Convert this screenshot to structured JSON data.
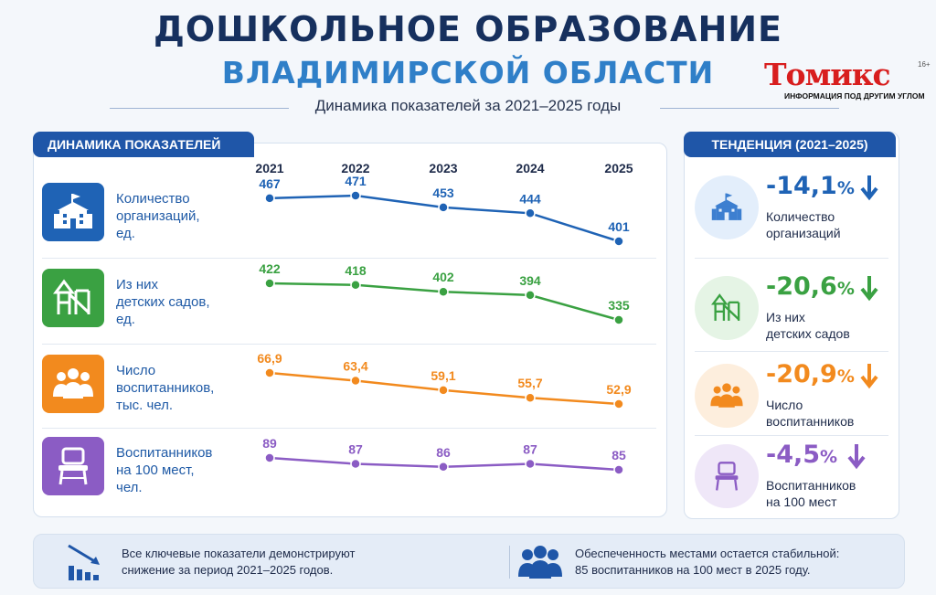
{
  "header": {
    "title_line1": "ДОШКОЛЬНОЕ ОБРАЗОВАНИЕ",
    "title_line2": "ВЛАДИМИРСКОЙ ОБЛАСТИ",
    "subtitle": "Динамика показателей за 2021–2025 годы"
  },
  "logo": {
    "name": "Томикс",
    "age": "16+",
    "tagline": "ИНФОРМАЦИЯ ПОД ДРУГИМ УГЛОМ",
    "color": "#d81e1e"
  },
  "left_panel": {
    "heading": "ДИНАМИКА ПОКАЗАТЕЛЕЙ",
    "rows": [
      {
        "label": "Количество\nорганизаций,\nед.",
        "icon": "school-building-icon",
        "color": "#1f63b5"
      },
      {
        "label": "Из них\nдетских садов,\nед.",
        "icon": "playground-icon",
        "color": "#3aa142"
      },
      {
        "label": "Число\nвоспитанников,\nтыс. чел.",
        "icon": "children-group-icon",
        "color": "#f28a1e"
      },
      {
        "label": "Воспитанников\nна 100 мест,\nчел.",
        "icon": "chair-icon",
        "color": "#8b5cc4"
      }
    ]
  },
  "chart_data": {
    "type": "line",
    "categories": [
      "2021",
      "2022",
      "2023",
      "2024",
      "2025"
    ],
    "series": [
      {
        "values": [
          467,
          471,
          453,
          444,
          401
        ],
        "labels": [
          "467",
          "471",
          "453",
          "444",
          "401"
        ],
        "color": "#1f63b5"
      },
      {
        "values": [
          422,
          418,
          402,
          394,
          335
        ],
        "labels": [
          "422",
          "418",
          "402",
          "394",
          "335"
        ],
        "color": "#3aa142"
      },
      {
        "values": [
          66.9,
          63.4,
          59.1,
          55.7,
          52.9
        ],
        "labels": [
          "66,9",
          "63,4",
          "59,1",
          "55,7",
          "52,9"
        ],
        "color": "#f28a1e"
      },
      {
        "values": [
          89,
          87,
          86,
          87,
          85
        ],
        "labels": [
          "89",
          "87",
          "86",
          "87",
          "85"
        ],
        "color": "#8b5cc4"
      }
    ]
  },
  "right_panel": {
    "heading": "ТЕНДЕНЦИЯ (2021–2025)",
    "items": [
      {
        "value": "-14,1",
        "unit": "%",
        "desc": "Количество\nорганизаций",
        "color": "#1f63b5",
        "bg": "#e3eefb",
        "icon": "school-building-icon"
      },
      {
        "value": "-20,6",
        "unit": "%",
        "desc": "Из них\nдетских садов",
        "color": "#3aa142",
        "bg": "#e5f4e5",
        "icon": "playground-icon"
      },
      {
        "value": "-20,9",
        "unit": "%",
        "desc": "Число\nвоспитанников",
        "color": "#f28a1e",
        "bg": "#fdeedd",
        "icon": "children-group-icon"
      },
      {
        "value": "-4,5",
        "unit": "%",
        "desc": "Воспитанников\nна 100 мест",
        "color": "#8b5cc4",
        "bg": "#efe7f8",
        "icon": "chair-icon"
      }
    ]
  },
  "footer": {
    "left_text": "Все ключевые показатели демонстрируют\nснижение за период 2021–2025 годов.",
    "right_text": "Обеспеченность местами остается стабильной:\n85 воспитанников на 100 мест в 2025 году.",
    "left_icon": "declining-chart-icon",
    "right_icon": "people-group-icon"
  }
}
